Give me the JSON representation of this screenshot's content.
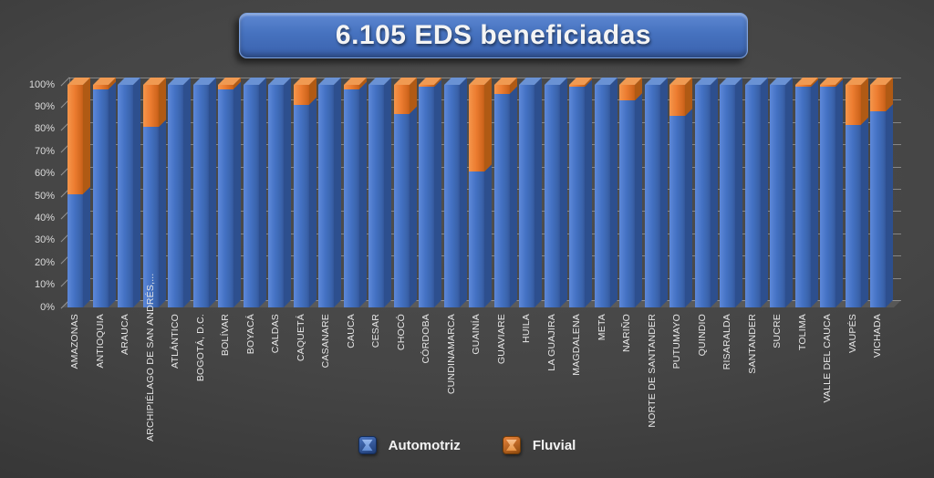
{
  "title": "6.105 EDS beneficiadas",
  "colors": {
    "background": "#3F3F3F",
    "title_fill": "#4472C4",
    "title_text": "#F2F2F2",
    "automotriz": "#4472C4",
    "fluvial": "#ED7D31",
    "gridline": "#BFBFBF",
    "axis_text": "#D9D9D9"
  },
  "legend": {
    "items": [
      {
        "id": "automotriz",
        "label": "Automotriz",
        "color": "#4472C4"
      },
      {
        "id": "fluvial",
        "label": "Fluvial",
        "color": "#ED7D31"
      }
    ]
  },
  "chart_data": {
    "type": "bar",
    "subtype": "100%-stacked-3d-column",
    "title": "6.105 EDS beneficiadas",
    "xlabel": "",
    "ylabel": "",
    "ylim": [
      0,
      100
    ],
    "grid": true,
    "legend_position": "bottom",
    "y_tick_labels": [
      "0%",
      "10%",
      "20%",
      "30%",
      "40%",
      "50%",
      "60%",
      "70%",
      "80%",
      "90%",
      "100%"
    ],
    "categories": [
      "AMAZONAS",
      "ANTIOQUIA",
      "ARAUCA",
      "ARCHIPIÉLAGO DE SAN ANDRÉS,...",
      "ATLÁNTICO",
      "BOGOTÁ, D.C.",
      "BOLÍVAR",
      "BOYACÁ",
      "CALDAS",
      "CAQUETÁ",
      "CASANARE",
      "CAUCA",
      "CESAR",
      "CHOCÓ",
      "CÓRDOBA",
      "CUNDINAMARCA",
      "GUAINÍA",
      "GUAVIARE",
      "HUILA",
      "LA GUAJIRA",
      "MAGDALENA",
      "META",
      "NARIÑO",
      "NORTE DE SANTANDER",
      "PUTUMAYO",
      "QUINDIO",
      "RISARALDA",
      "SANTANDER",
      "SUCRE",
      "TOLIMA",
      "VALLE DEL CAUCA",
      "VAUPÉS",
      "VICHADA"
    ],
    "series": [
      {
        "name": "Automotriz",
        "color": "#4472C4",
        "palette": {
          "side": "#2d4f8e",
          "top": "#6a92d4"
        },
        "values": [
          51,
          98,
          100,
          81,
          100,
          100,
          98,
          100,
          100,
          91,
          100,
          98,
          100,
          87,
          99,
          100,
          61,
          96,
          100,
          100,
          99,
          100,
          93,
          100,
          86,
          100,
          100,
          100,
          100,
          99,
          99,
          82,
          88
        ]
      },
      {
        "name": "Fluvial",
        "color": "#ED7D31",
        "palette": {
          "side": "#b05a14",
          "top": "#f09a52"
        },
        "values": [
          49,
          2,
          0,
          19,
          0,
          0,
          2,
          0,
          0,
          9,
          0,
          2,
          0,
          13,
          1,
          0,
          39,
          4,
          0,
          0,
          1,
          0,
          7,
          0,
          14,
          0,
          0,
          0,
          0,
          1,
          1,
          18,
          12
        ]
      }
    ]
  }
}
